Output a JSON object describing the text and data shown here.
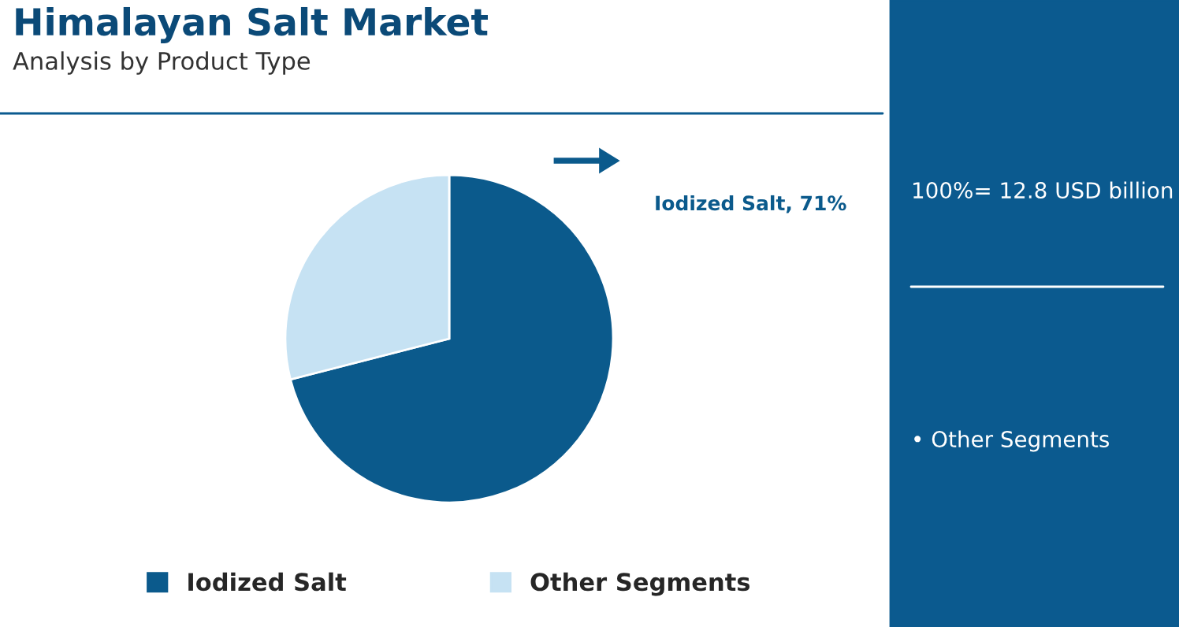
{
  "chart_data": {
    "type": "pie",
    "title": "Himalayan Salt Market",
    "subtitle": "Analysis by Product Type",
    "categories": [
      "Iodized Salt",
      "Other Segments"
    ],
    "values": [
      71,
      29
    ],
    "colors": [
      "#0b5a8c",
      "#c6e2f3"
    ],
    "value_labels": [
      "Iodized Salt, 71%",
      null
    ],
    "legend": "bottom",
    "annotations": [
      "100%= 12.8 USD billion",
      "• Other Segments"
    ]
  }
}
